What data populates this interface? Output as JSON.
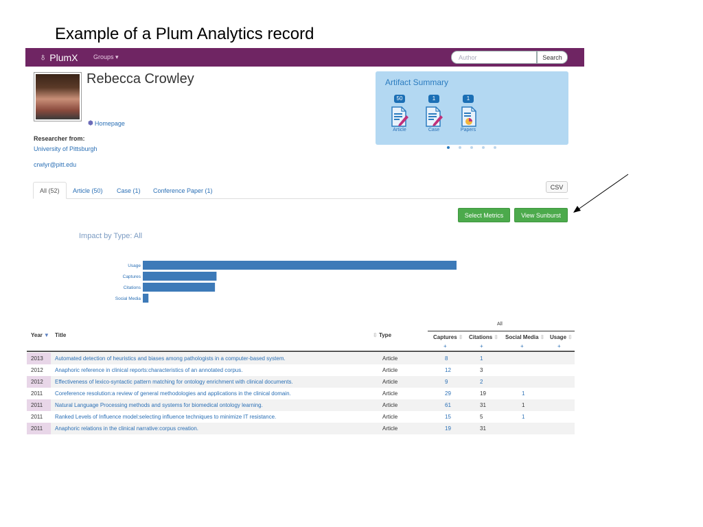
{
  "slide_title": "Example of  a Plum Analytics record",
  "navbar": {
    "logo": "PlumX",
    "groups": "Groups ▾",
    "search_placeholder": "Author",
    "search_button": "Search",
    "brand_color": "#6f2563"
  },
  "profile": {
    "name": "Rebecca Crowley",
    "homepage": "Homepage",
    "researcher_label": "Researcher from:",
    "university": "University of Pittsburgh",
    "email": "crwlyr@pitt.edu"
  },
  "artifact_summary": {
    "title": "Artifact Summary",
    "items": [
      {
        "count": "50",
        "label": "Article"
      },
      {
        "count": "1",
        "label": "Case"
      },
      {
        "count": "1",
        "label": "Papers"
      }
    ],
    "dot_count": 5,
    "active_dot": 0
  },
  "tabs": [
    {
      "label": "All (52)",
      "active": true
    },
    {
      "label": "Article (50)",
      "active": false
    },
    {
      "label": "Case (1)",
      "active": false
    },
    {
      "label": "Conference Paper (1)",
      "active": false
    }
  ],
  "csv_button": "CSV",
  "buttons": {
    "select_metrics": "Select Metrics",
    "view_sunburst": "View Sunburst"
  },
  "impact_title": "Impact by Type:  All",
  "chart_data": {
    "type": "bar",
    "orientation": "horizontal",
    "title": "Impact by Type:  All",
    "categories": [
      "Usage",
      "Captures",
      "Citations",
      "Social Media"
    ],
    "values": [
      100,
      23.5,
      23,
      1.8
    ],
    "bar_color": "#3d7ab8",
    "grid": false
  },
  "table": {
    "group_header": "All",
    "columns": {
      "year": "Year",
      "title": "Title",
      "type": "Type",
      "captures": "Captures",
      "citations": "Citations",
      "social_media": "Social Media",
      "usage": "Usage"
    },
    "plus": "+",
    "rows": [
      {
        "year": "2013",
        "title": "Automated detection of heuristics and biases among pathologists in a computer-based system.",
        "type": "Article",
        "captures": "8",
        "citations": "1",
        "citations_link": true,
        "social_media": "",
        "usage": ""
      },
      {
        "year": "2012",
        "title": "Anaphoric reference in clinical reports:characteristics of an annotated corpus.",
        "type": "Article",
        "captures": "12",
        "citations": "3",
        "citations_link": false,
        "social_media": "",
        "usage": ""
      },
      {
        "year": "2012",
        "title": "Effectiveness of lexico-syntactic pattern matching for ontology enrichment with clinical documents.",
        "type": "Article",
        "captures": "9",
        "citations": "2",
        "citations_link": true,
        "social_media": "",
        "usage": ""
      },
      {
        "year": "2011",
        "title": "Coreference resolution:a review of general methodologies and applications in the clinical domain.",
        "type": "Article",
        "captures": "29",
        "citations": "19",
        "citations_link": false,
        "social_media": "1",
        "social_link": true,
        "usage": ""
      },
      {
        "year": "2011",
        "title": "Natural Language Processing methods and systems for biomedical ontology learning.",
        "type": "Article",
        "captures": "61",
        "citations": "31",
        "citations_link": false,
        "social_media": "1",
        "social_link": false,
        "usage": ""
      },
      {
        "year": "2011",
        "title": "Ranked Levels of Influence model:selecting influence techniques to minimize IT resistance.",
        "type": "Article",
        "captures": "15",
        "citations": "5",
        "citations_link": false,
        "social_media": "1",
        "social_link": true,
        "usage": ""
      },
      {
        "year": "2011",
        "title": "Anaphoric relations in the clinical narrative:corpus creation.",
        "type": "Article",
        "captures": "19",
        "citations": "31",
        "citations_link": false,
        "social_media": "",
        "usage": ""
      }
    ]
  }
}
